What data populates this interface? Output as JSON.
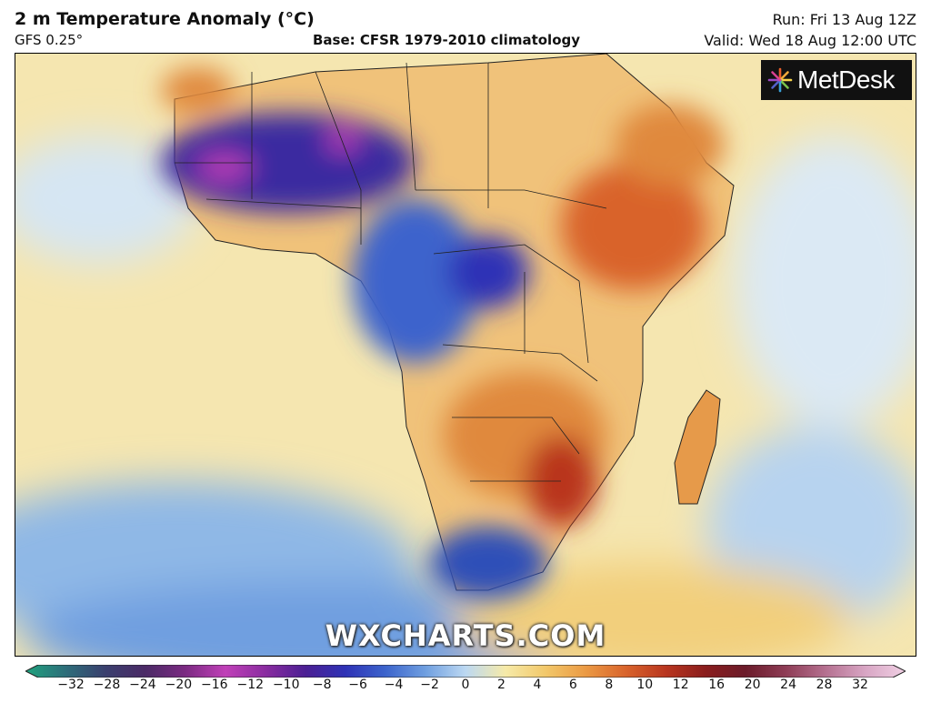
{
  "header": {
    "title": "2 m Temperature Anomaly (°C)",
    "model": "GFS 0.25°",
    "base": "Base: CFSR 1979-2010 climatology",
    "run": "Run: Fri 13 Aug 12Z",
    "valid": "Valid: Wed 18 Aug 12:00 UTC"
  },
  "logo": {
    "text": "MetDesk"
  },
  "watermark": "WXCHARTS.COM",
  "colorbar": {
    "ticks": [
      "−32",
      "−28",
      "−24",
      "−20",
      "−16",
      "−12",
      "−10",
      "−8",
      "−6",
      "−4",
      "−2",
      "0",
      "2",
      "4",
      "6",
      "8",
      "10",
      "12",
      "16",
      "20",
      "24",
      "28",
      "32"
    ],
    "colors": [
      "#1fa37e",
      "#2d6e7a",
      "#3a3f6e",
      "#4b2a66",
      "#7b2a82",
      "#c040b8",
      "#8a2ca0",
      "#4b1f93",
      "#2e32b6",
      "#3c64cc",
      "#6f9fe0",
      "#bcd8f2",
      "#f6eaa8",
      "#f2c86a",
      "#eb9a44",
      "#d9642c",
      "#b9361f",
      "#8a1d1d",
      "#6b1b2a",
      "#8e3c55",
      "#b57090",
      "#d8a6c4",
      "#f0d0e4"
    ]
  },
  "regions": [
    {
      "name": "west-africa-cold-anomaly",
      "color": "#3b2aa0"
    },
    {
      "name": "sahel-warm-anomaly",
      "color": "#e0893e"
    },
    {
      "name": "horn-of-africa-warm-anomaly",
      "color": "#d9642c"
    },
    {
      "name": "congo-basin-cold-anomaly",
      "color": "#3c64cc"
    },
    {
      "name": "southern-africa-warm-anomaly",
      "color": "#d25a24"
    },
    {
      "name": "south-africa-cold-anomaly",
      "color": "#2e4fb8"
    },
    {
      "name": "madagascar-warm-anomaly",
      "color": "#e69a4a"
    },
    {
      "name": "atlantic-neutral",
      "color": "#f4e3a8"
    },
    {
      "name": "southern-ocean-cool",
      "color": "#9cc0e6"
    }
  ]
}
